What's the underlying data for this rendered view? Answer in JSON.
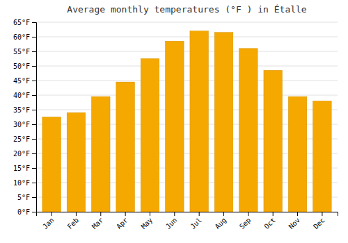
{
  "chart_data": {
    "type": "bar",
    "title": "Average monthly temperatures (°F ) in Étalle",
    "categories": [
      "Jan",
      "Feb",
      "Mar",
      "Apr",
      "May",
      "Jun",
      "Jul",
      "Aug",
      "Sep",
      "Oct",
      "Nov",
      "Dec"
    ],
    "values": [
      32.5,
      34.0,
      39.5,
      44.5,
      52.5,
      58.5,
      62.0,
      61.5,
      56.0,
      48.5,
      39.5,
      38.0
    ],
    "color": "#F5A800",
    "ylim": [
      0,
      65
    ],
    "yticks": [
      {
        "value": 0,
        "label": "0°F"
      },
      {
        "value": 5,
        "label": "5°F"
      },
      {
        "value": 10,
        "label": "10°F"
      },
      {
        "value": 15,
        "label": "15°F"
      },
      {
        "value": 20,
        "label": "20°F"
      },
      {
        "value": 25,
        "label": "25°F"
      },
      {
        "value": 30,
        "label": "30°F"
      },
      {
        "value": 35,
        "label": "35°F"
      },
      {
        "value": 40,
        "label": "40°F"
      },
      {
        "value": 45,
        "label": "45°F"
      },
      {
        "value": 50,
        "label": "50°F"
      },
      {
        "value": 55,
        "label": "55°F"
      },
      {
        "value": 60,
        "label": "60°F"
      },
      {
        "value": 65,
        "label": "65°F"
      }
    ],
    "grid": true
  }
}
